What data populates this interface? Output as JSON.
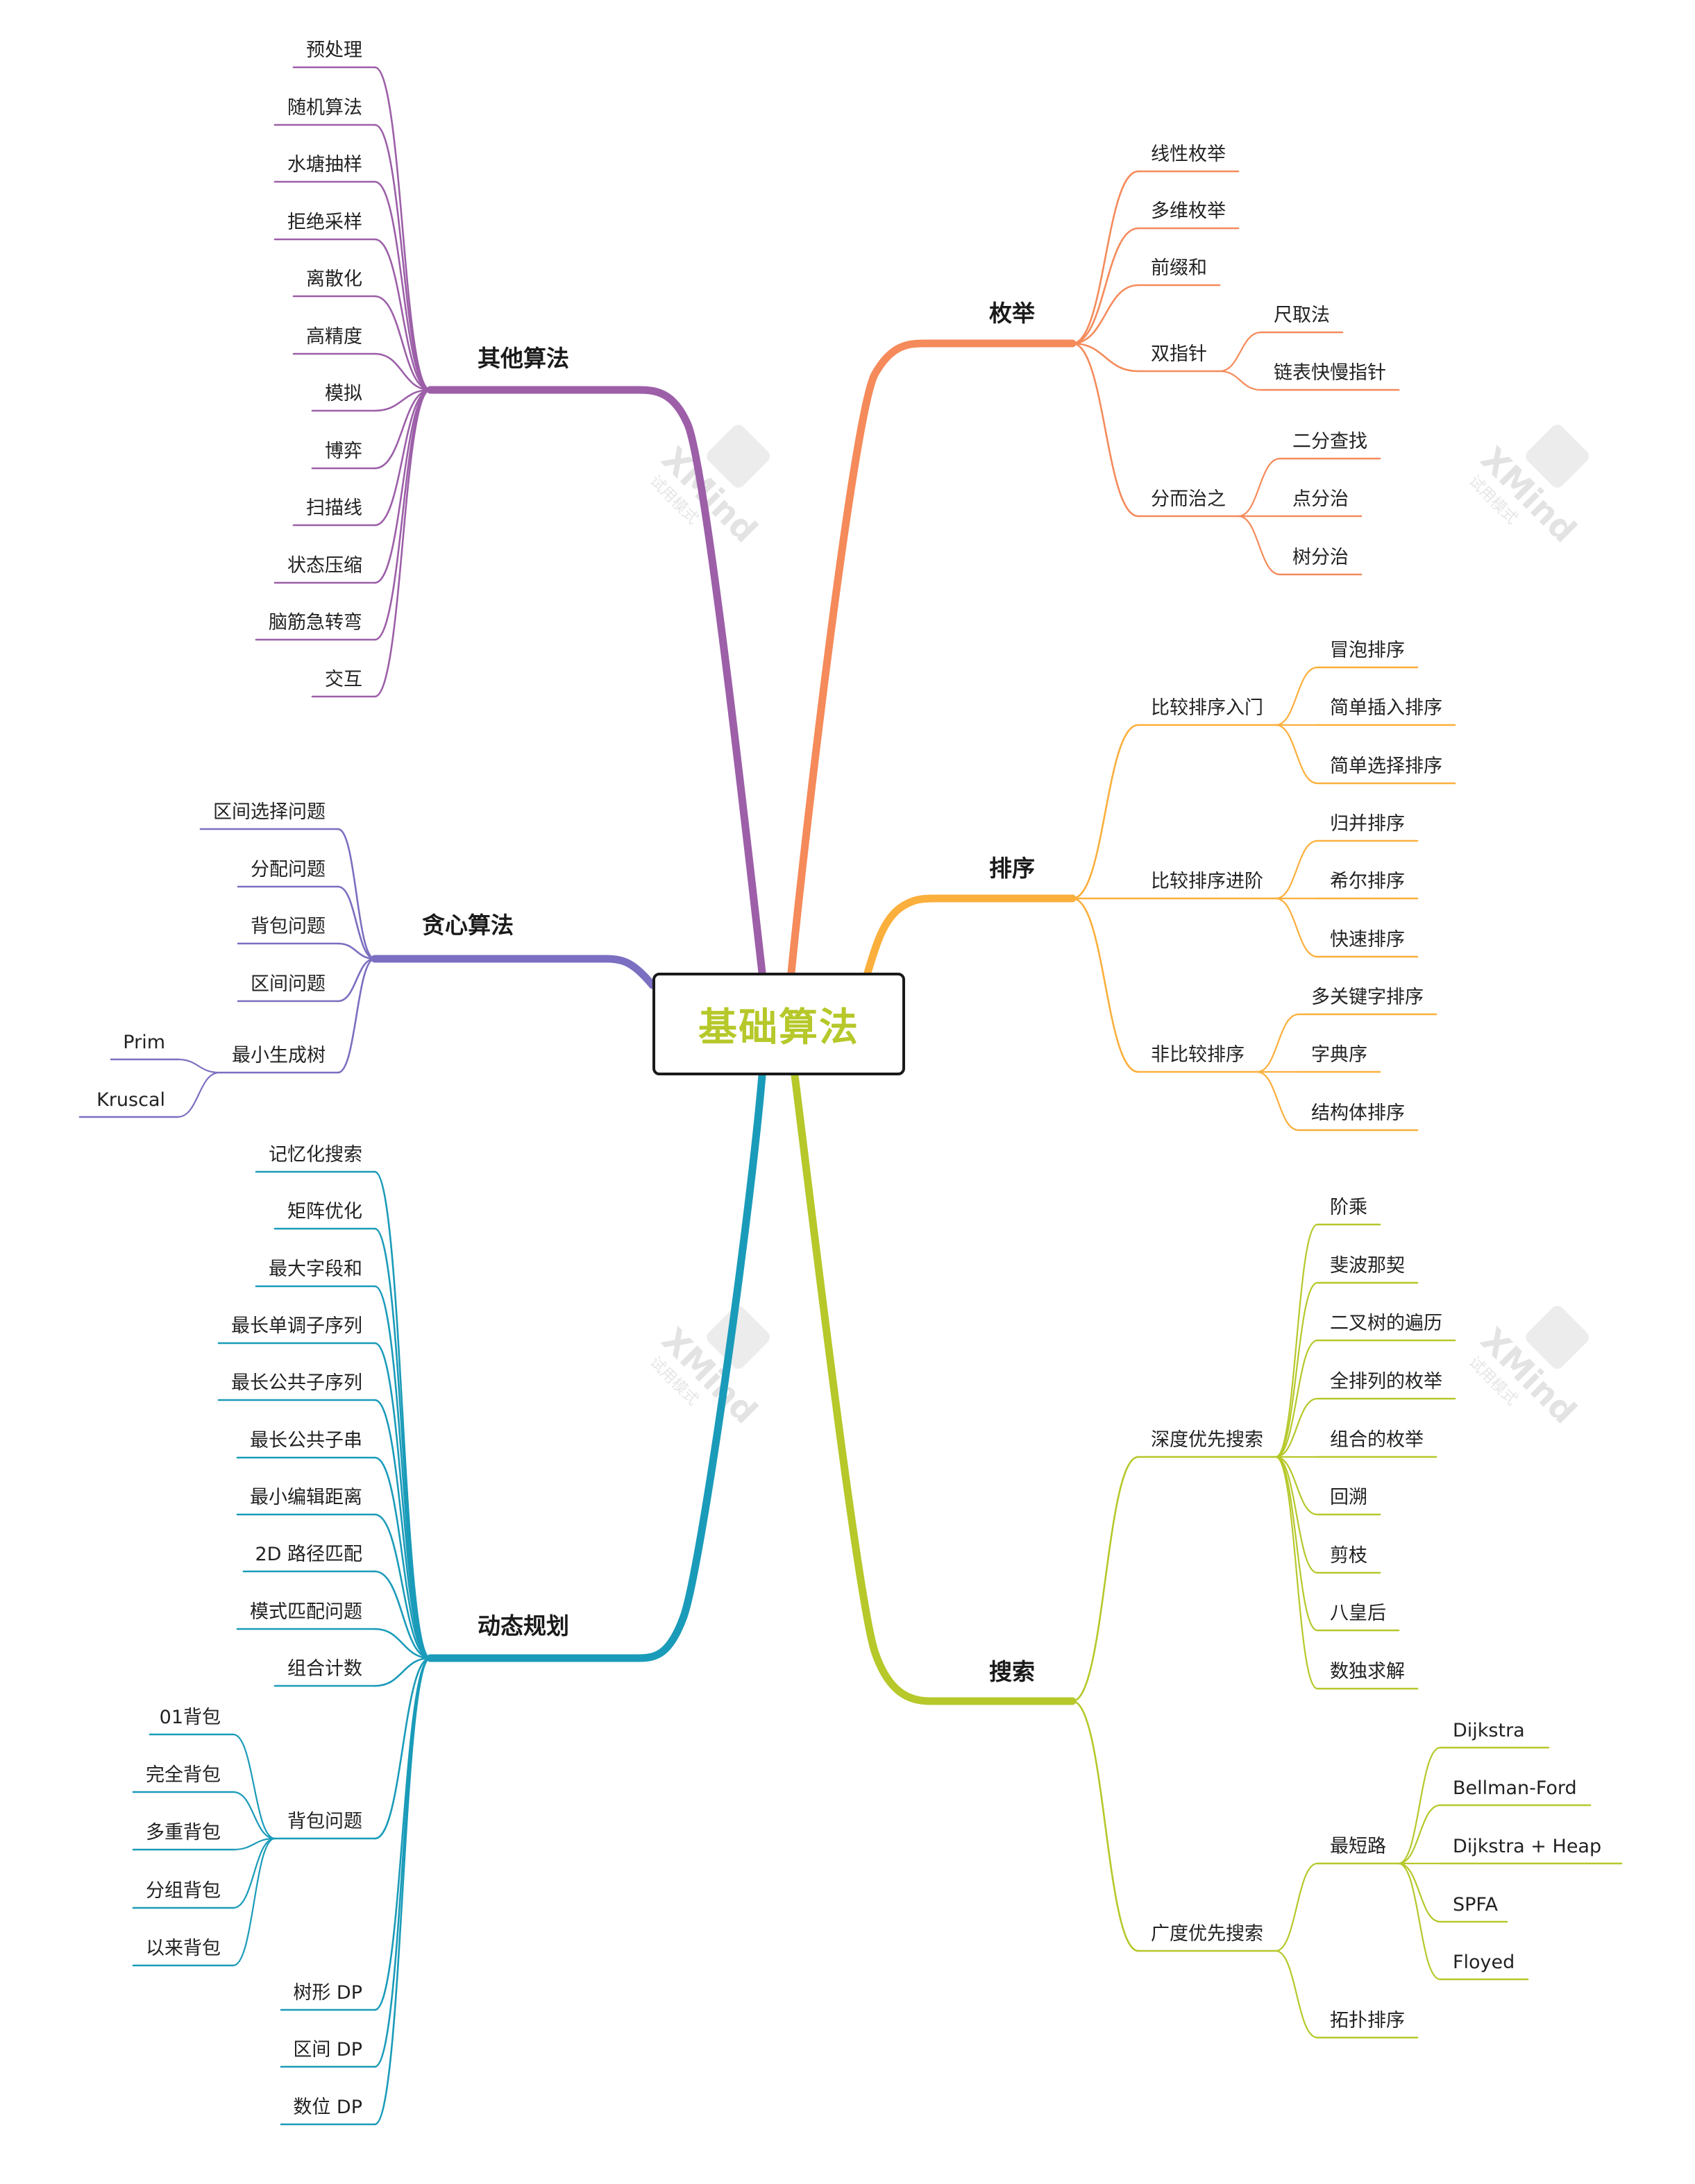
{
  "center": {
    "label": "基础算法",
    "color": "#b6c82a"
  },
  "watermark": {
    "text": "XMind",
    "sub": "试用模式"
  },
  "branches": {
    "enum": {
      "label": "枚举",
      "color": "#f58a5a",
      "children": [
        {
          "label": "线性枚举"
        },
        {
          "label": "多维枚举"
        },
        {
          "label": "前缀和"
        },
        {
          "label": "双指针",
          "children": [
            {
              "label": "尺取法"
            },
            {
              "label": "链表快慢指针"
            }
          ]
        },
        {
          "label": "分而治之",
          "children": [
            {
              "label": "二分查找"
            },
            {
              "label": "点分治"
            },
            {
              "label": "树分治"
            }
          ]
        }
      ]
    },
    "sort": {
      "label": "排序",
      "color": "#fbaf3c",
      "children": [
        {
          "label": "比较排序入门",
          "children": [
            {
              "label": "冒泡排序"
            },
            {
              "label": "简单插入排序"
            },
            {
              "label": "简单选择排序"
            }
          ]
        },
        {
          "label": "比较排序进阶",
          "children": [
            {
              "label": "归并排序"
            },
            {
              "label": "希尔排序"
            },
            {
              "label": "快速排序"
            }
          ]
        },
        {
          "label": "非比较排序",
          "children": [
            {
              "label": "多关键字排序"
            },
            {
              "label": "字典序"
            },
            {
              "label": "结构体排序"
            }
          ]
        }
      ]
    },
    "search": {
      "label": "搜索",
      "color": "#b6c82a",
      "children": [
        {
          "label": "深度优先搜索",
          "children": [
            {
              "label": "阶乘"
            },
            {
              "label": "斐波那契"
            },
            {
              "label": "二叉树的遍历"
            },
            {
              "label": "全排列的枚举"
            },
            {
              "label": "组合的枚举"
            },
            {
              "label": "回溯"
            },
            {
              "label": "剪枝"
            },
            {
              "label": "八皇后"
            },
            {
              "label": "数独求解"
            }
          ]
        },
        {
          "label": "广度优先搜索",
          "children": [
            {
              "label": "最短路",
              "children": [
                {
                  "label": "Dijkstra"
                },
                {
                  "label": "Bellman-Ford"
                },
                {
                  "label": "Dijkstra + Heap"
                },
                {
                  "label": "SPFA"
                },
                {
                  "label": "Floyed"
                }
              ]
            },
            {
              "label": "拓扑排序"
            }
          ]
        }
      ]
    },
    "other": {
      "label": "其他算法",
      "color": "#9c5fa8",
      "children": [
        {
          "label": "预处理"
        },
        {
          "label": "随机算法"
        },
        {
          "label": "水塘抽样"
        },
        {
          "label": "拒绝采样"
        },
        {
          "label": "离散化"
        },
        {
          "label": "高精度"
        },
        {
          "label": "模拟"
        },
        {
          "label": "博弈"
        },
        {
          "label": "扫描线"
        },
        {
          "label": "状态压缩"
        },
        {
          "label": "脑筋急转弯"
        },
        {
          "label": "交互"
        }
      ]
    },
    "greedy": {
      "label": "贪心算法",
      "color": "#7a6fc0",
      "children": [
        {
          "label": "区间选择问题"
        },
        {
          "label": "分配问题"
        },
        {
          "label": "背包问题"
        },
        {
          "label": "区间问题"
        },
        {
          "label": "最小生成树",
          "children": [
            {
              "label": "Prim"
            },
            {
              "label": "Kruscal"
            }
          ]
        }
      ]
    },
    "dp": {
      "label": "动态规划",
      "color": "#1a9bb9",
      "children": [
        {
          "label": "记忆化搜索"
        },
        {
          "label": "矩阵优化"
        },
        {
          "label": "最大字段和"
        },
        {
          "label": "最长单调子序列"
        },
        {
          "label": "最长公共子序列"
        },
        {
          "label": "最长公共子串"
        },
        {
          "label": "最小编辑距离"
        },
        {
          "label": "2D 路径匹配"
        },
        {
          "label": "模式匹配问题"
        },
        {
          "label": "组合计数"
        },
        {
          "label": "背包问题",
          "children": [
            {
              "label": "01背包"
            },
            {
              "label": "完全背包"
            },
            {
              "label": "多重背包"
            },
            {
              "label": "分组背包"
            },
            {
              "label": "以来背包"
            }
          ]
        },
        {
          "label": "树形 DP"
        },
        {
          "label": "区间 DP"
        },
        {
          "label": "数位 DP"
        }
      ]
    }
  }
}
